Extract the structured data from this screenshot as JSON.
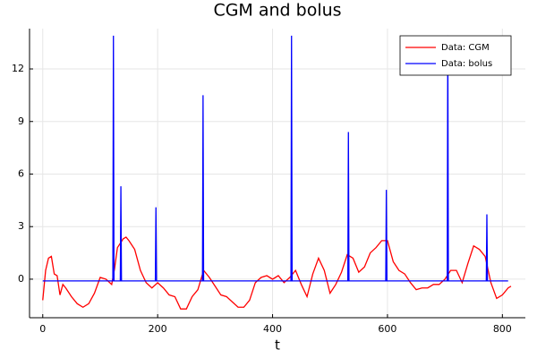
{
  "chart_data": {
    "type": "line",
    "title": "CGM and bolus",
    "x_label": "t",
    "xlim": [
      -23,
      840
    ],
    "ylim": [
      -2.2,
      14.3
    ],
    "xticks": [
      0,
      200,
      400,
      600,
      800
    ],
    "yticks": [
      0,
      3,
      6,
      9,
      12
    ],
    "grid": true,
    "legend": "top-right",
    "series": [
      {
        "name": "Data: CGM",
        "color": "#ff0000",
        "x": [
          0,
          5,
          10,
          15,
          20,
          25,
          30,
          35,
          40,
          50,
          60,
          70,
          80,
          90,
          100,
          110,
          120,
          125,
          130,
          140,
          145,
          150,
          160,
          170,
          180,
          190,
          200,
          210,
          220,
          230,
          240,
          250,
          260,
          270,
          280,
          290,
          300,
          310,
          320,
          330,
          340,
          350,
          360,
          370,
          380,
          390,
          400,
          410,
          420,
          430,
          440,
          450,
          460,
          470,
          480,
          490,
          500,
          510,
          520,
          530,
          540,
          550,
          560,
          570,
          580,
          590,
          600,
          610,
          620,
          630,
          640,
          650,
          660,
          670,
          680,
          690,
          700,
          710,
          720,
          730,
          740,
          750,
          760,
          770,
          780,
          790,
          800,
          810,
          815
        ],
        "values": [
          -1.2,
          0.5,
          1.2,
          1.3,
          0.3,
          0.2,
          -0.9,
          -0.3,
          -0.5,
          -1.0,
          -1.4,
          -1.6,
          -1.4,
          -0.8,
          0.1,
          0.0,
          -0.3,
          0.6,
          1.8,
          2.3,
          2.4,
          2.2,
          1.7,
          0.5,
          -0.2,
          -0.5,
          -0.2,
          -0.5,
          -0.9,
          -1.0,
          -1.7,
          -1.7,
          -1.0,
          -0.6,
          0.5,
          0.1,
          -0.4,
          -0.9,
          -1.0,
          -1.3,
          -1.6,
          -1.6,
          -1.2,
          -0.2,
          0.1,
          0.2,
          0.0,
          0.2,
          -0.2,
          0.1,
          0.5,
          -0.3,
          -1.0,
          0.3,
          1.2,
          0.5,
          -0.8,
          -0.3,
          0.4,
          1.4,
          1.2,
          0.4,
          0.7,
          1.5,
          1.8,
          2.2,
          2.2,
          1.0,
          0.5,
          0.3,
          -0.2,
          -0.6,
          -0.5,
          -0.5,
          -0.3,
          -0.3,
          0.0,
          0.5,
          0.5,
          -0.2,
          0.9,
          1.9,
          1.7,
          1.3,
          -0.2,
          -1.1,
          -0.9,
          -0.5,
          -0.4
        ]
      },
      {
        "name": "Data: bolus",
        "color": "#0000ff",
        "x": [
          0,
          122,
          123,
          124,
          135,
          136,
          137,
          196,
          197,
          198,
          278,
          279,
          280,
          432,
          433,
          434,
          531,
          532,
          533,
          597,
          598,
          599,
          704,
          705,
          706,
          772,
          773,
          774,
          810
        ],
        "values": [
          -0.1,
          -0.1,
          13.9,
          -0.1,
          -0.1,
          5.3,
          -0.1,
          -0.1,
          4.1,
          -0.1,
          -0.1,
          10.5,
          -0.1,
          -0.1,
          13.9,
          -0.1,
          -0.1,
          8.4,
          -0.1,
          -0.1,
          5.1,
          -0.1,
          -0.1,
          13.9,
          -0.1,
          -0.1,
          3.7,
          -0.1,
          -0.1
        ]
      }
    ]
  }
}
